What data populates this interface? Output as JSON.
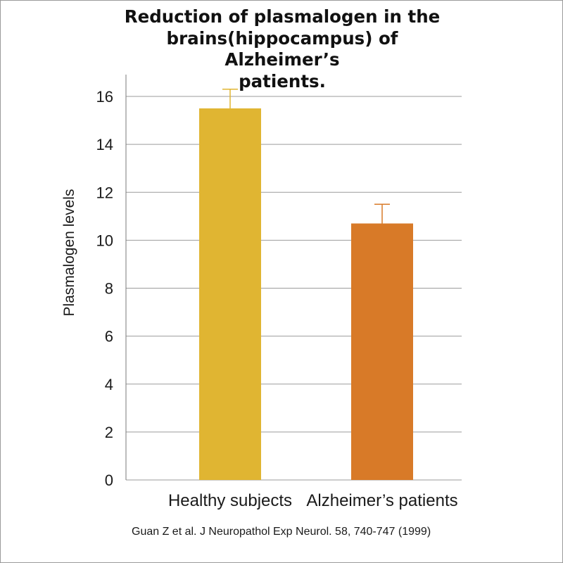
{
  "chart_data": {
    "type": "bar",
    "title": "Reduction of plasmalogen in the\nbrains(hippocampus) of Alzheimer’s\npatients.",
    "categories": [
      "Healthy subjects",
      "Alzheimer’s patients"
    ],
    "values": [
      15.5,
      10.7
    ],
    "error_bars": [
      0.8,
      0.8
    ],
    "colors": [
      "#e0b532",
      "#d87a28"
    ],
    "xlabel": "",
    "ylabel": "Plasmalogen levels",
    "ylim": [
      0,
      16
    ],
    "yticks": [
      0,
      2,
      4,
      6,
      8,
      10,
      12,
      14,
      16
    ],
    "grid": true,
    "legend": "none"
  },
  "citation": "Guan Z et al. J Neuropathol Exp Neurol. 58, 740-747 (1999)"
}
